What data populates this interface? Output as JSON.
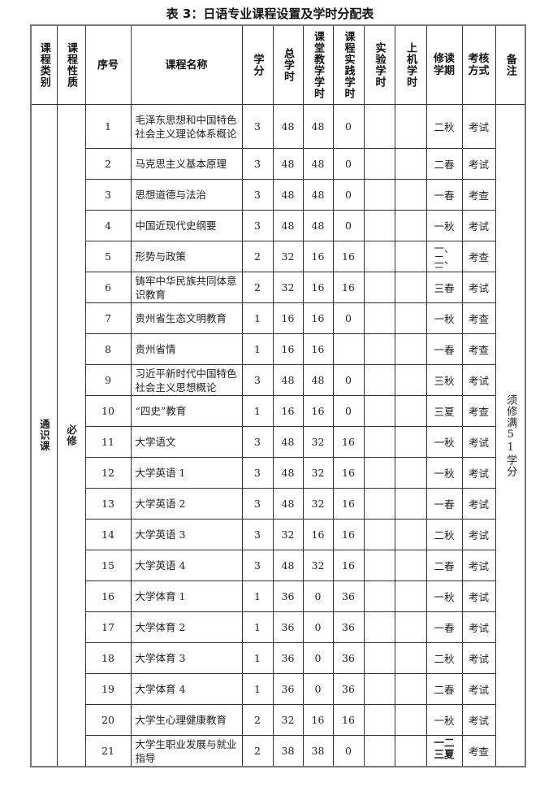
{
  "title": "表 3：日语专业课程设置及学时分配表",
  "headers": [
    "课程类别",
    "课程性质",
    "序号",
    "课程名称",
    "学分",
    "总学时",
    "课堂教学学时",
    "课程实践学时",
    "实验学时",
    "上机学时",
    "修读学期",
    "考核方式",
    "备注"
  ],
  "category": "通识课",
  "nature": "必修",
  "remark": "须修满51学分",
  "rows": [
    {
      "no": "1",
      "name": "毛泽东思想和中国特色社会主义理论体系概论",
      "credit": "3",
      "total": "48",
      "class": "48",
      "practice": "0",
      "exp": "",
      "computer": "",
      "term": "二秋",
      "exam": "考试"
    },
    {
      "no": "2",
      "name": "马克思主义基本原理",
      "credit": "3",
      "total": "48",
      "class": "48",
      "practice": "0",
      "exp": "",
      "computer": "",
      "term": "二春",
      "exam": "考试"
    },
    {
      "no": "3",
      "name": "思想道德与法治",
      "credit": "3",
      "total": "48",
      "class": "48",
      "practice": "0",
      "exp": "",
      "computer": "",
      "term": "一春",
      "exam": "考查"
    },
    {
      "no": "4",
      "name": "中国近现代史纲要",
      "credit": "3",
      "total": "48",
      "class": "48",
      "practice": "0",
      "exp": "",
      "computer": "",
      "term": "一秋",
      "exam": "考试"
    },
    {
      "no": "5",
      "name": "形势与政策",
      "credit": "2",
      "total": "32",
      "class": "16",
      "practice": "16",
      "exp": "",
      "computer": "",
      "term": "一、二、三、",
      "exam": "考查"
    },
    {
      "no": "6",
      "name": "铸牢中华民族共同体意识教育",
      "credit": "2",
      "total": "32",
      "class": "16",
      "practice": "16",
      "exp": "",
      "computer": "",
      "term": "三春",
      "exam": "考试"
    },
    {
      "no": "7",
      "name": "贵州省生态文明教育",
      "credit": "1",
      "total": "16",
      "class": "16",
      "practice": "0",
      "exp": "",
      "computer": "",
      "term": "一秋",
      "exam": "考查"
    },
    {
      "no": "8",
      "name": "贵州省情",
      "credit": "1",
      "total": "16",
      "class": "16",
      "practice": "",
      "exp": "",
      "computer": "",
      "term": "一春",
      "exam": "考查"
    },
    {
      "no": "9",
      "name": "习近平新时代中国特色社会主义思想概论",
      "credit": "3",
      "total": "48",
      "class": "48",
      "practice": "0",
      "exp": "",
      "computer": "",
      "term": "三秋",
      "exam": "考试"
    },
    {
      "no": "10",
      "name": "“四史”教育",
      "credit": "1",
      "total": "16",
      "class": "16",
      "practice": "0",
      "exp": "",
      "computer": "",
      "term": "三夏",
      "exam": "考查"
    },
    {
      "no": "11",
      "name": "大学语文",
      "credit": "3",
      "total": "48",
      "class": "32",
      "practice": "16",
      "exp": "",
      "computer": "",
      "term": "一秋",
      "exam": "考试"
    },
    {
      "no": "12",
      "name": "大学英语 1",
      "credit": "3",
      "total": "48",
      "class": "32",
      "practice": "16",
      "exp": "",
      "computer": "",
      "term": "一秋",
      "exam": "考试"
    },
    {
      "no": "13",
      "name": "大学英语 2",
      "credit": "3",
      "total": "48",
      "class": "32",
      "practice": "16",
      "exp": "",
      "computer": "",
      "term": "一春",
      "exam": "考试"
    },
    {
      "no": "14",
      "name": "大学英语 3",
      "credit": "3",
      "total": "32",
      "class": "16",
      "practice": "16",
      "exp": "",
      "computer": "",
      "term": "二秋",
      "exam": "考试"
    },
    {
      "no": "15",
      "name": "大学英语 4",
      "credit": "3",
      "total": "48",
      "class": "32",
      "practice": "16",
      "exp": "",
      "computer": "",
      "term": "二春",
      "exam": "考试"
    },
    {
      "no": "16",
      "name": "大学体育 1",
      "credit": "1",
      "total": "36",
      "class": "0",
      "practice": "36",
      "exp": "",
      "computer": "",
      "term": "一秋",
      "exam": "考试"
    },
    {
      "no": "17",
      "name": "大学体育 2",
      "credit": "1",
      "total": "36",
      "class": "0",
      "practice": "36",
      "exp": "",
      "computer": "",
      "term": "一春",
      "exam": "考试"
    },
    {
      "no": "18",
      "name": "大学体育 3",
      "credit": "1",
      "total": "36",
      "class": "0",
      "practice": "36",
      "exp": "",
      "computer": "",
      "term": "二秋",
      "exam": "考试"
    },
    {
      "no": "19",
      "name": "大学体育 4",
      "credit": "1",
      "total": "36",
      "class": "0",
      "practice": "36",
      "exp": "",
      "computer": "",
      "term": "二春",
      "exam": "考试"
    },
    {
      "no": "20",
      "name": "大学生心理健康教育",
      "credit": "2",
      "total": "32",
      "class": "16",
      "practice": "16",
      "exp": "",
      "computer": "",
      "term": "一秋",
      "exam": "考试"
    },
    {
      "no": "21",
      "name": "大学生职业发展与就业指导",
      "credit": "2",
      "total": "38",
      "class": "38",
      "practice": "0",
      "exp": "",
      "computer": "",
      "term": "一二三夏",
      "exam": "考查"
    }
  ]
}
